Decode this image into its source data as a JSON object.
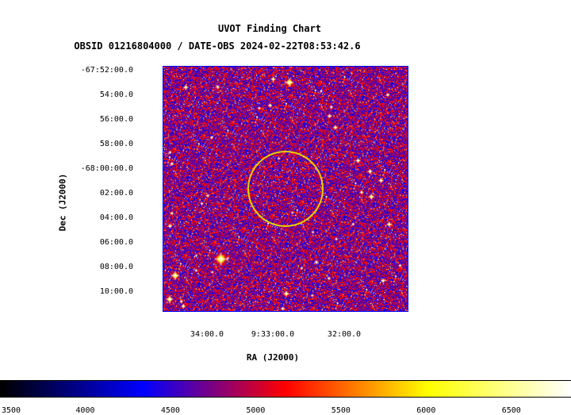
{
  "chart_data": {
    "type": "heatmap",
    "title": "UVOT Finding Chart",
    "subtitle": "OBSID 01216804000 / DATE-OBS 2024-02-22T08:53:42.6",
    "xlabel": "RA (J2000)",
    "ylabel": "Dec (J2000)",
    "x_ticks": [
      "34:00.0",
      "9:33:00.0",
      "32:00.0"
    ],
    "y_ticks": [
      "-67:52:00.0",
      "54:00.0",
      "56:00.0",
      "58:00.0",
      "-68:00:00.0",
      "02:00.0",
      "04:00.0",
      "06:00.0",
      "08:00.0",
      "10:00.0"
    ],
    "colorbar": {
      "ticks": [
        3500,
        4000,
        4500,
        5000,
        5500,
        6000,
        6500
      ],
      "range": [
        3500,
        6850
      ],
      "colors": [
        "#000000",
        "#0000ff",
        "#ff0000",
        "#ffff00",
        "#ffffff"
      ]
    },
    "region": {
      "shape": "circle",
      "color": "#e8d000"
    },
    "frame_color": "#0000ff"
  }
}
